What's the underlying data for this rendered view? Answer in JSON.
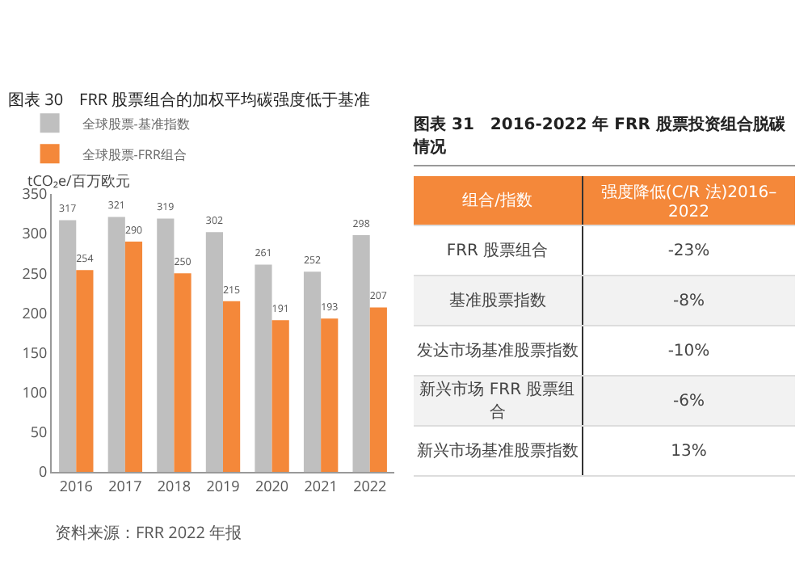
{
  "chart_data": [
    {
      "type": "bar",
      "title": "图表 30　FRR 股票组合的加权平均碳强度低于基准",
      "ylabel": "tCO₂e/百万欧元",
      "categories": [
        "2016",
        "2017",
        "2018",
        "2019",
        "2020",
        "2021",
        "2022"
      ],
      "series": [
        {
          "name": "全球股票-基准指数",
          "color": "#bfbfbf",
          "values": [
            317,
            321,
            319,
            302,
            261,
            252,
            298
          ]
        },
        {
          "name": "全球股票-FRR组合",
          "color": "#f4883a",
          "values": [
            254,
            290,
            250,
            215,
            191,
            193,
            207
          ]
        }
      ],
      "ylim": [
        0,
        350
      ],
      "yticks": [
        0,
        50,
        100,
        150,
        200,
        250,
        300,
        350
      ],
      "grid": false,
      "legend": "top",
      "data_labels": true,
      "annotations": [
        "资料来源：FRR 2022 年报"
      ]
    },
    {
      "type": "other",
      "title": "图表 31　2016-2022 年 FRR 股票投资组合脱碳情况",
      "annotations": [
        "组合/指数",
        "强度降低(C/R 法)2016–2022",
        "FRR 股票组合",
        "-23%",
        "基准股票指数",
        "-8%",
        "发达市场基准股票指数",
        "-10%",
        "新兴市场 FRR 股票组合",
        "-6%",
        "新兴市场基准股票指数",
        "13%"
      ]
    }
  ]
}
